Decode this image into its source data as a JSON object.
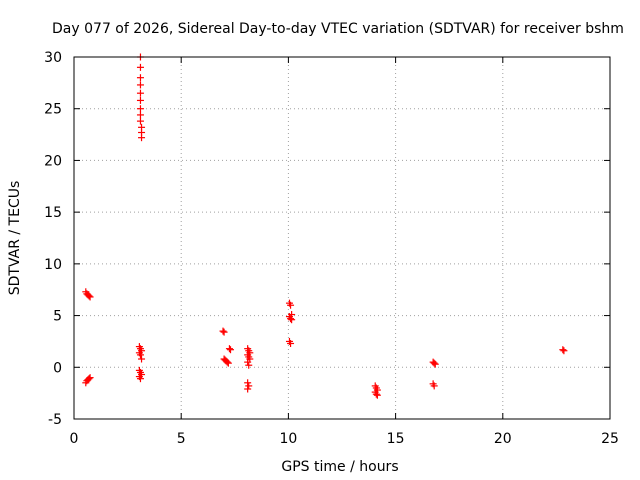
{
  "chart_data": {
    "type": "scatter",
    "title": "Day 077 of 2026, Sidereal Day-to-day VTEC variation (SDTVAR) for receiver bshm",
    "xlabel": "GPS time / hours",
    "ylabel": "SDTVAR / TECUs",
    "xlim": [
      0,
      25
    ],
    "ylim": [
      -5,
      30
    ],
    "xticks": [
      0,
      5,
      10,
      15,
      20,
      25
    ],
    "yticks": [
      -5,
      0,
      5,
      10,
      15,
      20,
      25,
      30
    ],
    "grid": true,
    "marker": "plus",
    "color": "#ff0000",
    "series": [
      {
        "name": "SDTVAR",
        "points": [
          [
            0.55,
            7.3
          ],
          [
            0.6,
            7.1
          ],
          [
            0.65,
            7.0
          ],
          [
            0.7,
            6.9
          ],
          [
            0.75,
            6.8
          ],
          [
            0.55,
            -1.5
          ],
          [
            0.6,
            -1.3
          ],
          [
            0.65,
            -1.2
          ],
          [
            0.7,
            -1.1
          ],
          [
            0.75,
            -1.0
          ],
          [
            3.1,
            30.0
          ],
          [
            3.1,
            29.0
          ],
          [
            3.1,
            28.0
          ],
          [
            3.1,
            27.3
          ],
          [
            3.1,
            26.5
          ],
          [
            3.1,
            25.8
          ],
          [
            3.1,
            25.0
          ],
          [
            3.1,
            24.4
          ],
          [
            3.1,
            23.8
          ],
          [
            3.15,
            23.2
          ],
          [
            3.15,
            22.7
          ],
          [
            3.15,
            22.2
          ],
          [
            3.05,
            2.0
          ],
          [
            3.1,
            1.8
          ],
          [
            3.15,
            1.6
          ],
          [
            3.05,
            1.4
          ],
          [
            3.1,
            1.2
          ],
          [
            3.15,
            0.8
          ],
          [
            3.05,
            -0.3
          ],
          [
            3.1,
            -0.5
          ],
          [
            3.15,
            -0.7
          ],
          [
            3.05,
            -0.9
          ],
          [
            3.1,
            -1.1
          ],
          [
            6.95,
            3.5
          ],
          [
            7.0,
            3.4
          ],
          [
            7.25,
            1.8
          ],
          [
            7.3,
            1.7
          ],
          [
            7.0,
            0.8
          ],
          [
            7.05,
            0.7
          ],
          [
            7.1,
            0.6
          ],
          [
            7.15,
            0.5
          ],
          [
            7.2,
            0.4
          ],
          [
            8.1,
            1.8
          ],
          [
            8.15,
            1.6
          ],
          [
            8.2,
            1.4
          ],
          [
            8.1,
            1.2
          ],
          [
            8.15,
            1.0
          ],
          [
            8.2,
            0.8
          ],
          [
            8.1,
            0.5
          ],
          [
            8.15,
            0.2
          ],
          [
            8.1,
            -1.5
          ],
          [
            8.15,
            -1.8
          ],
          [
            8.1,
            -2.1
          ],
          [
            10.05,
            6.2
          ],
          [
            10.1,
            6.0
          ],
          [
            10.15,
            5.1
          ],
          [
            10.05,
            4.9
          ],
          [
            10.1,
            4.7
          ],
          [
            10.15,
            4.6
          ],
          [
            10.05,
            2.5
          ],
          [
            10.1,
            2.3
          ],
          [
            14.05,
            -1.8
          ],
          [
            14.1,
            -2.0
          ],
          [
            14.15,
            -2.2
          ],
          [
            14.05,
            -2.4
          ],
          [
            14.1,
            -2.6
          ],
          [
            14.15,
            -2.7
          ],
          [
            16.75,
            0.5
          ],
          [
            16.8,
            0.4
          ],
          [
            16.85,
            0.3
          ],
          [
            16.75,
            -1.6
          ],
          [
            16.8,
            -1.8
          ],
          [
            22.8,
            1.7
          ],
          [
            22.85,
            1.6
          ]
        ]
      }
    ]
  }
}
